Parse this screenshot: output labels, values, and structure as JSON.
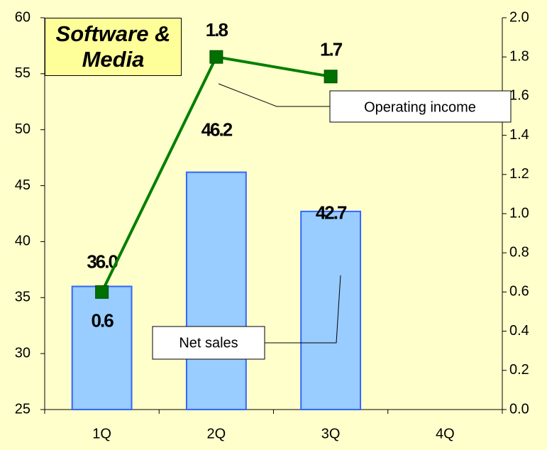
{
  "chart_data": {
    "type": "bar",
    "title": "Software & Media",
    "categories": [
      "1Q",
      "2Q",
      "3Q",
      "4Q"
    ],
    "series": [
      {
        "name": "Net sales",
        "type": "bar",
        "color": "#99ccff",
        "values": [
          36.0,
          46.2,
          42.7,
          null
        ],
        "value_labels": [
          "36.0",
          "46.2",
          "42.7",
          null
        ]
      },
      {
        "name": "Operating income",
        "type": "line",
        "axis": "y2",
        "color": "#008000",
        "values": [
          0.6,
          1.8,
          1.7,
          null
        ]
      }
    ],
    "ylim": [
      25,
      60
    ],
    "yticks": [
      25,
      30,
      35,
      40,
      45,
      50,
      55,
      60
    ],
    "y2lim": [
      0,
      2
    ],
    "y2ticks": [
      {
        "value": 0,
        "label": "0.0"
      },
      0.2,
      0.4,
      0.6,
      0.8,
      {
        "value": 1,
        "label": "1.0"
      },
      1.2,
      1.4,
      1.6,
      1.8,
      {
        "value": 2,
        "label": "2.0"
      }
    ],
    "grid": false
  }
}
